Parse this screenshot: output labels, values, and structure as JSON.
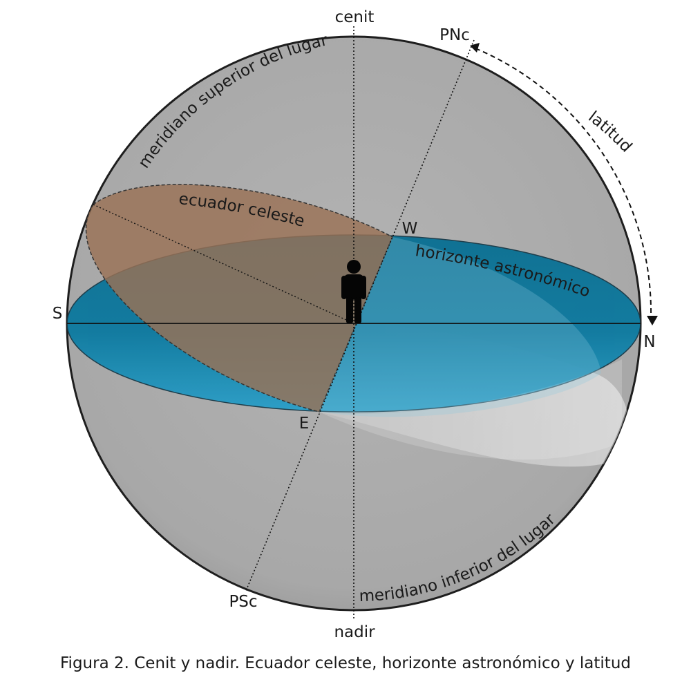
{
  "labels": {
    "zenith": "cenit",
    "nadir": "nadir",
    "north_celestial_pole": "PNc",
    "south_celestial_pole": "PSc",
    "south": "S",
    "north": "N",
    "west": "W",
    "east": "E",
    "latitude": "latitud",
    "celestial_equator": "ecuador celeste",
    "astronomical_horizon": "horizonte astronómico",
    "upper_meridian": "meridiano superior del lugar",
    "lower_meridian": "meridiano inferior del lugar"
  },
  "caption": "Figura 2. Cenit y nadir. Ecuador celeste, horizonte astronómico y latitud",
  "colors": {
    "sphere": "#ababab",
    "horizon": "#1582a8",
    "equator": "#9a7256",
    "outline": "#222222"
  },
  "icons": {
    "observer": "person-icon"
  }
}
